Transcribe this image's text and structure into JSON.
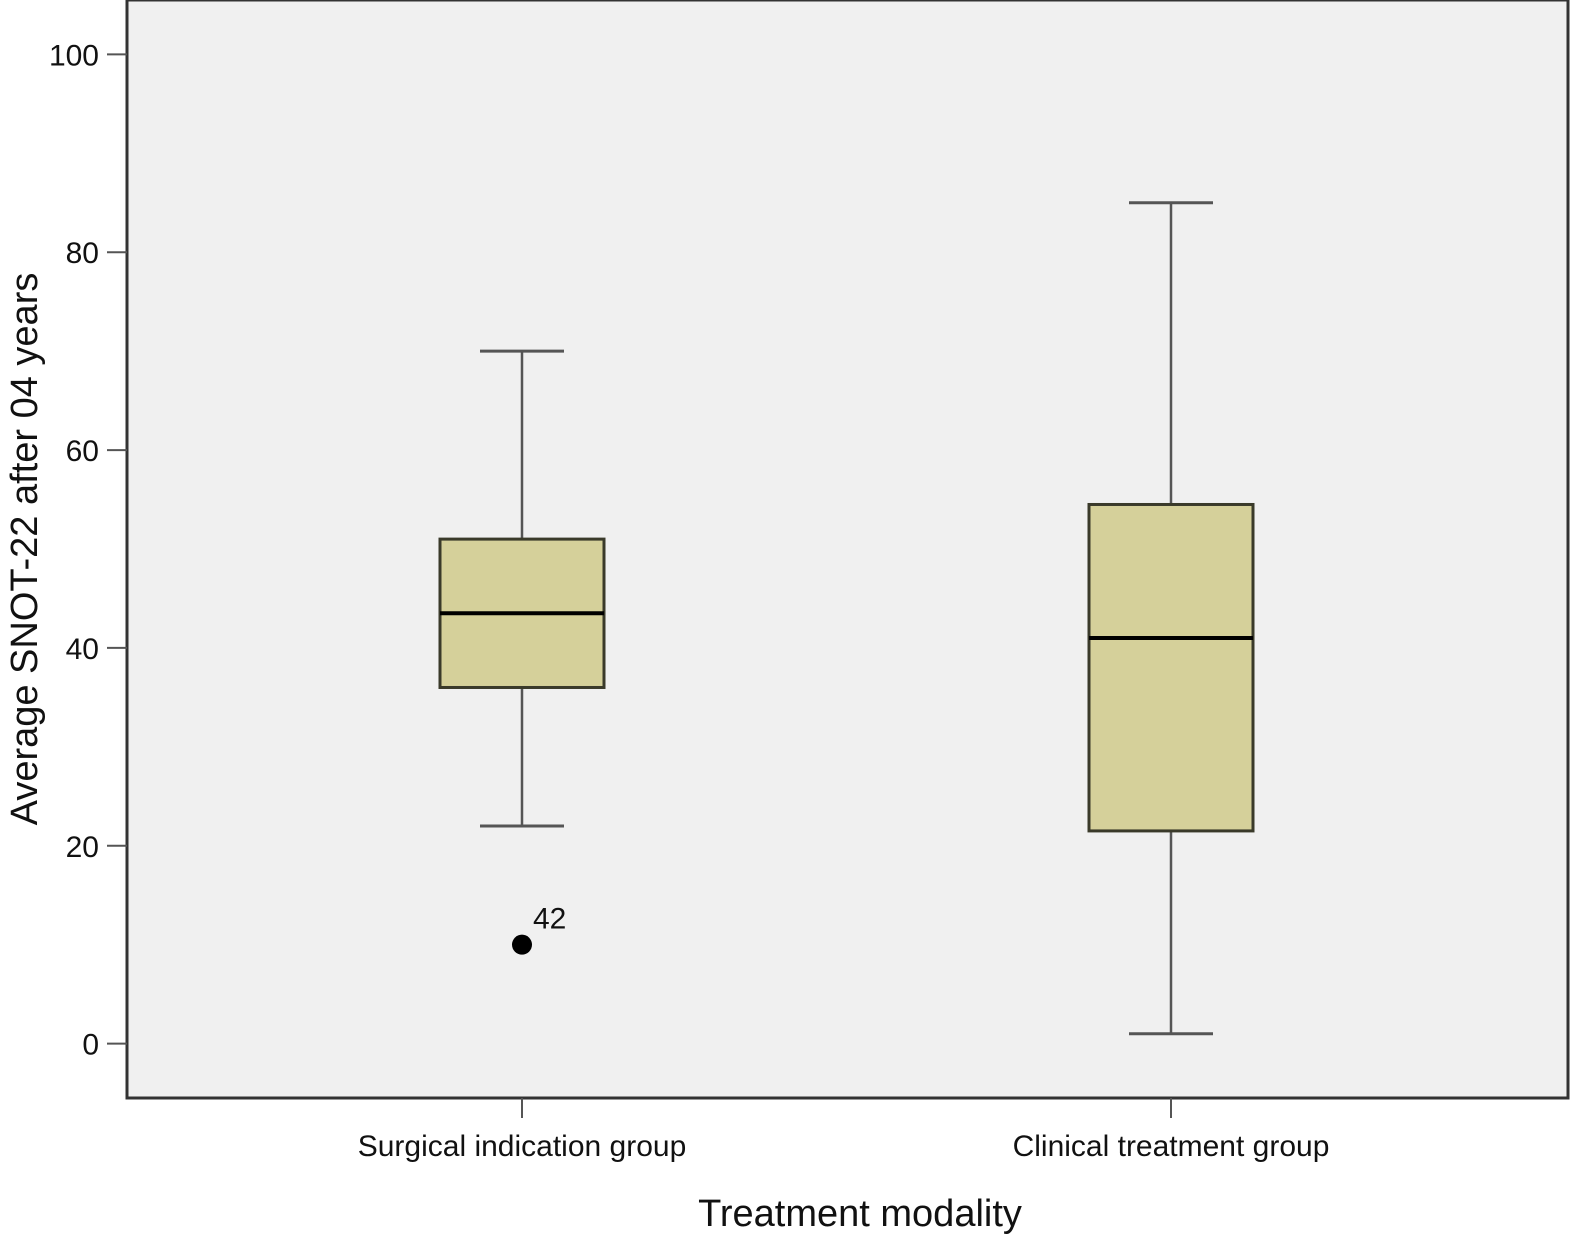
{
  "chart_data": {
    "type": "boxplot",
    "title": "",
    "xlabel": "Treatment modality",
    "ylabel": "Average SNOT-22 after 04 years",
    "ylim": [
      -5.5,
      105.5
    ],
    "yticks": [
      0,
      20,
      40,
      60,
      80,
      100
    ],
    "yticklabels": [
      "0",
      "20",
      "40",
      "60",
      "80",
      "100"
    ],
    "grid": false,
    "categories": [
      "Surgical indication group",
      "Clinical treatment group"
    ],
    "boxes": [
      {
        "category": "Surgical indication group",
        "whisker_low": 22,
        "q1": 36,
        "median": 43.5,
        "q3": 51,
        "whisker_high": 70,
        "outliers": [
          {
            "value": 10,
            "label": "42"
          }
        ]
      },
      {
        "category": "Clinical treatment group",
        "whisker_low": 1,
        "q1": 21.5,
        "median": 41,
        "q3": 54.5,
        "whisker_high": 85,
        "outliers": []
      }
    ],
    "colors": {
      "plot_background": "#f0f0f0",
      "box_fill": "#d5d09a",
      "box_stroke": "#3a3a2a",
      "median": "#000000",
      "whisker": "#555555",
      "outlier": "#000000"
    }
  }
}
